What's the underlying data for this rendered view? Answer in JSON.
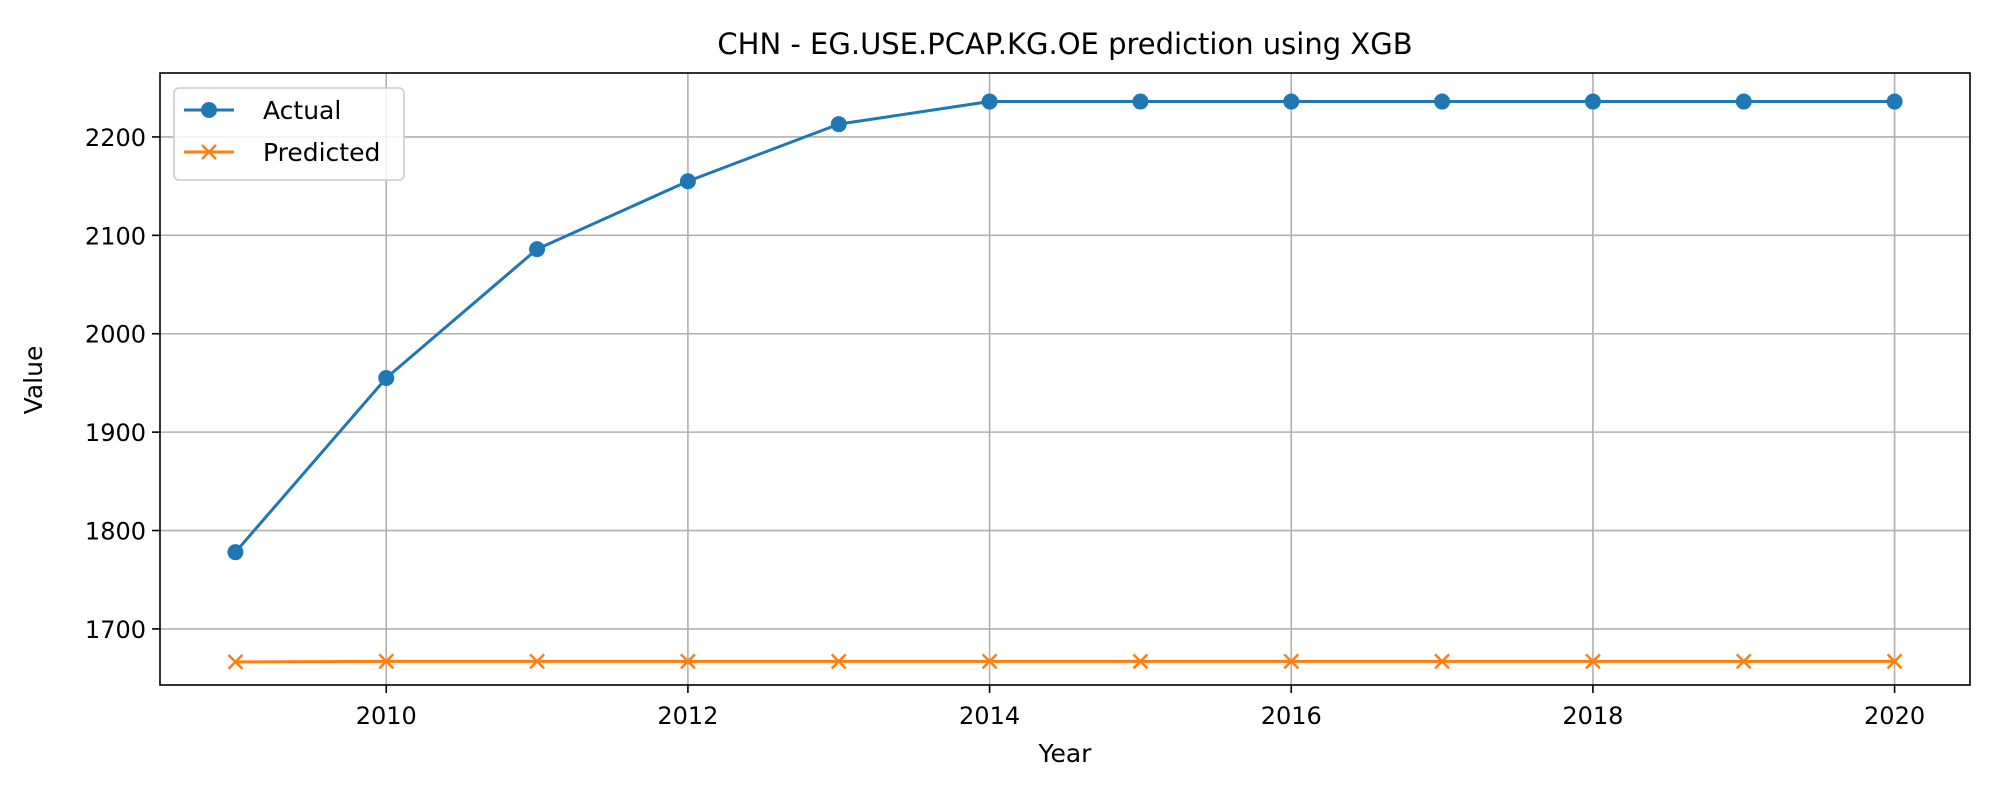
{
  "chart_data": {
    "type": "line",
    "title": "CHN - EG.USE.PCAP.KG.OE prediction using XGB",
    "xlabel": "Year",
    "ylabel": "Value",
    "x": [
      2009,
      2010,
      2011,
      2012,
      2013,
      2014,
      2015,
      2016,
      2017,
      2018,
      2019,
      2020
    ],
    "xlim": [
      2008.5,
      2020.5
    ],
    "ylim": [
      1643,
      2265
    ],
    "xticks": [
      2010,
      2012,
      2014,
      2016,
      2018,
      2020
    ],
    "yticks": [
      1700,
      1800,
      1900,
      2000,
      2100,
      2200
    ],
    "grid": true,
    "legend_position": "top-left",
    "series": [
      {
        "name": "Actual",
        "marker": "circle",
        "color": "#1f77b4",
        "values": [
          1778,
          1955,
          2086,
          2155,
          2213,
          2236,
          2236,
          2236,
          2236,
          2236,
          2236,
          2236
        ]
      },
      {
        "name": "Predicted",
        "marker": "x",
        "color": "#ff7f0e",
        "values": [
          1666.5,
          1667,
          1667,
          1667,
          1667,
          1667,
          1667,
          1667,
          1667,
          1667,
          1667,
          1667
        ]
      }
    ]
  }
}
